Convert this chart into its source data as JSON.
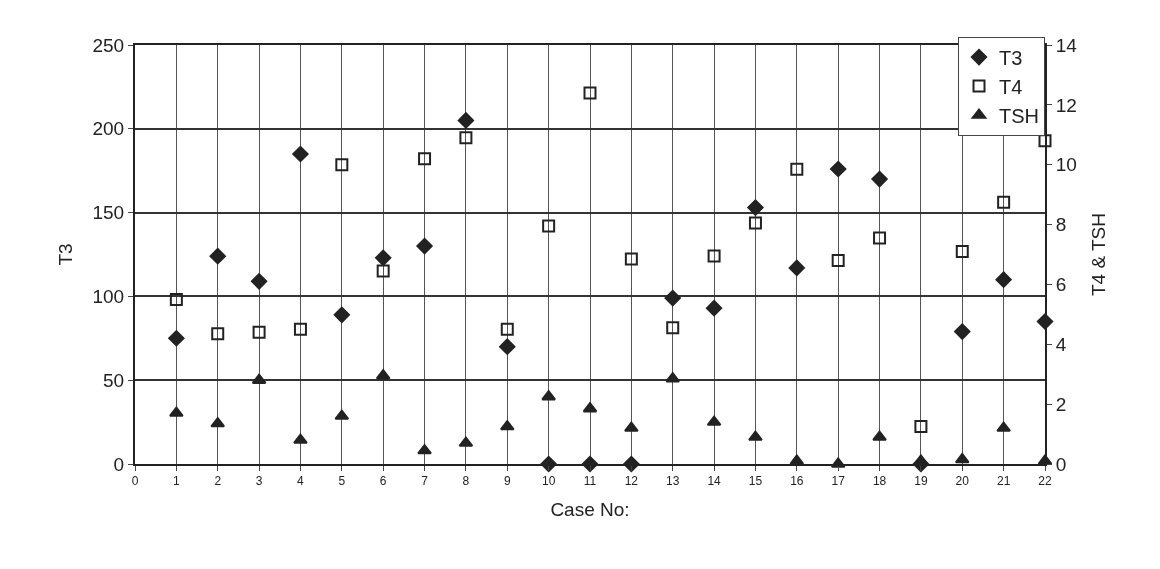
{
  "chart_data": {
    "type": "scatter",
    "xlabel": "Case No:",
    "ylabel": "T3",
    "y2label": "T4 & TSH",
    "x": [
      1,
      2,
      3,
      4,
      5,
      6,
      7,
      8,
      9,
      10,
      11,
      12,
      13,
      14,
      15,
      16,
      17,
      18,
      19,
      20,
      21,
      22
    ],
    "xlim": [
      0,
      22
    ],
    "xticks": [
      0,
      1,
      2,
      3,
      4,
      5,
      6,
      7,
      8,
      9,
      10,
      11,
      12,
      13,
      14,
      15,
      16,
      17,
      18,
      19,
      20,
      21,
      22
    ],
    "ylim": [
      0,
      250
    ],
    "yticks": [
      0,
      50,
      100,
      150,
      200,
      250
    ],
    "y2lim": [
      0,
      14
    ],
    "y2ticks": [
      0,
      2,
      4,
      6,
      8,
      10,
      12,
      14
    ],
    "grid": true,
    "legend": "top right",
    "series": [
      {
        "name": "T3",
        "color": "#222222",
        "marker": "diamond",
        "values": [
          75,
          124,
          109,
          185,
          89,
          123,
          130,
          205,
          70,
          0,
          0,
          0,
          99,
          93,
          153,
          117,
          176,
          170,
          0,
          79,
          110,
          85
        ]
      },
      {
        "name": "T4",
        "color": "#222222",
        "marker": "square",
        "axis": "y2",
        "values": [
          5.5,
          4.35,
          4.4,
          4.5,
          10.0,
          6.45,
          10.2,
          10.9,
          4.5,
          7.95,
          12.4,
          6.85,
          4.55,
          6.95,
          8.05,
          9.85,
          6.8,
          7.55,
          1.25,
          7.1,
          8.75,
          10.8
        ]
      },
      {
        "name": "TSH",
        "color": "#222222",
        "marker": "triangle",
        "axis": "y2",
        "values": [
          1.7,
          1.35,
          2.8,
          0.8,
          1.6,
          2.95,
          0.45,
          0.7,
          1.25,
          2.25,
          1.85,
          1.2,
          2.85,
          1.4,
          0.9,
          0.1,
          0,
          0.9,
          0.1,
          0.15,
          1.2,
          0.1
        ]
      }
    ]
  }
}
